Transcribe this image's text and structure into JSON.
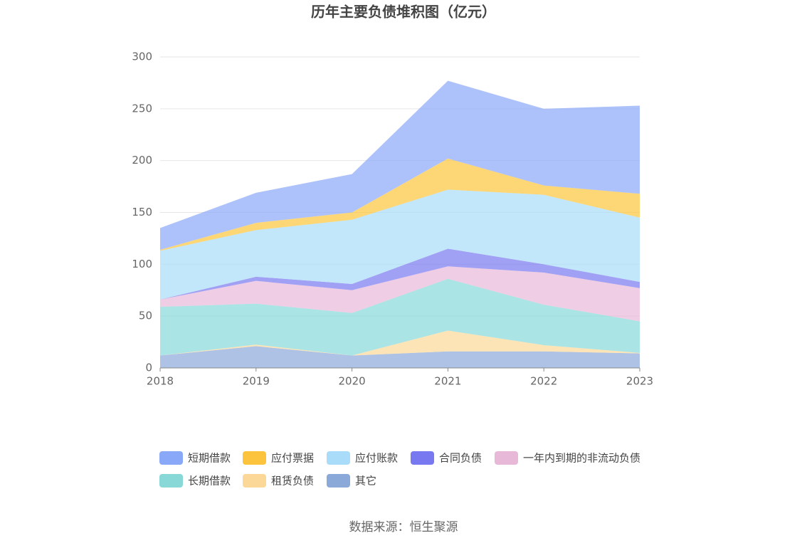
{
  "chart_data": {
    "type": "stacked_area",
    "title": "历年主要负债堆积图（亿元）",
    "categories": [
      "2018",
      "2019",
      "2020",
      "2021",
      "2022",
      "2023"
    ],
    "series": [
      {
        "name": "其它",
        "color": "#8aa8d8",
        "values": [
          12,
          21,
          12,
          16,
          16,
          14
        ]
      },
      {
        "name": "租赁负债",
        "color": "#fcd898",
        "values": [
          0,
          1.5,
          0,
          20,
          6,
          0.5
        ]
      },
      {
        "name": "长期借款",
        "color": "#88d8d8",
        "values": [
          47,
          39.5,
          41,
          50,
          39,
          30.5
        ]
      },
      {
        "name": "一年内到期的非流动负债",
        "color": "#e8b8d8",
        "values": [
          7,
          22,
          22,
          12,
          31,
          32
        ]
      },
      {
        "name": "合同负债",
        "color": "#7878f0",
        "values": [
          0,
          4,
          6,
          17,
          8,
          6
        ]
      },
      {
        "name": "应付账款",
        "color": "#a8dcf8",
        "values": [
          47,
          45,
          62,
          57,
          67,
          62
        ]
      },
      {
        "name": "应付票据",
        "color": "#fcc43c",
        "values": [
          1,
          7,
          7,
          30,
          9,
          23
        ]
      },
      {
        "name": "短期借款",
        "color": "#8aa8f8",
        "values": [
          21,
          29,
          37,
          75,
          74,
          85
        ]
      }
    ],
    "legend_order": [
      7,
      6,
      5,
      4,
      3,
      2,
      1,
      0
    ],
    "ylim": [
      0,
      300
    ],
    "yticks": [
      0,
      50,
      100,
      150,
      200,
      250,
      300
    ],
    "grid": true,
    "source": "数据来源：恒生聚源"
  }
}
